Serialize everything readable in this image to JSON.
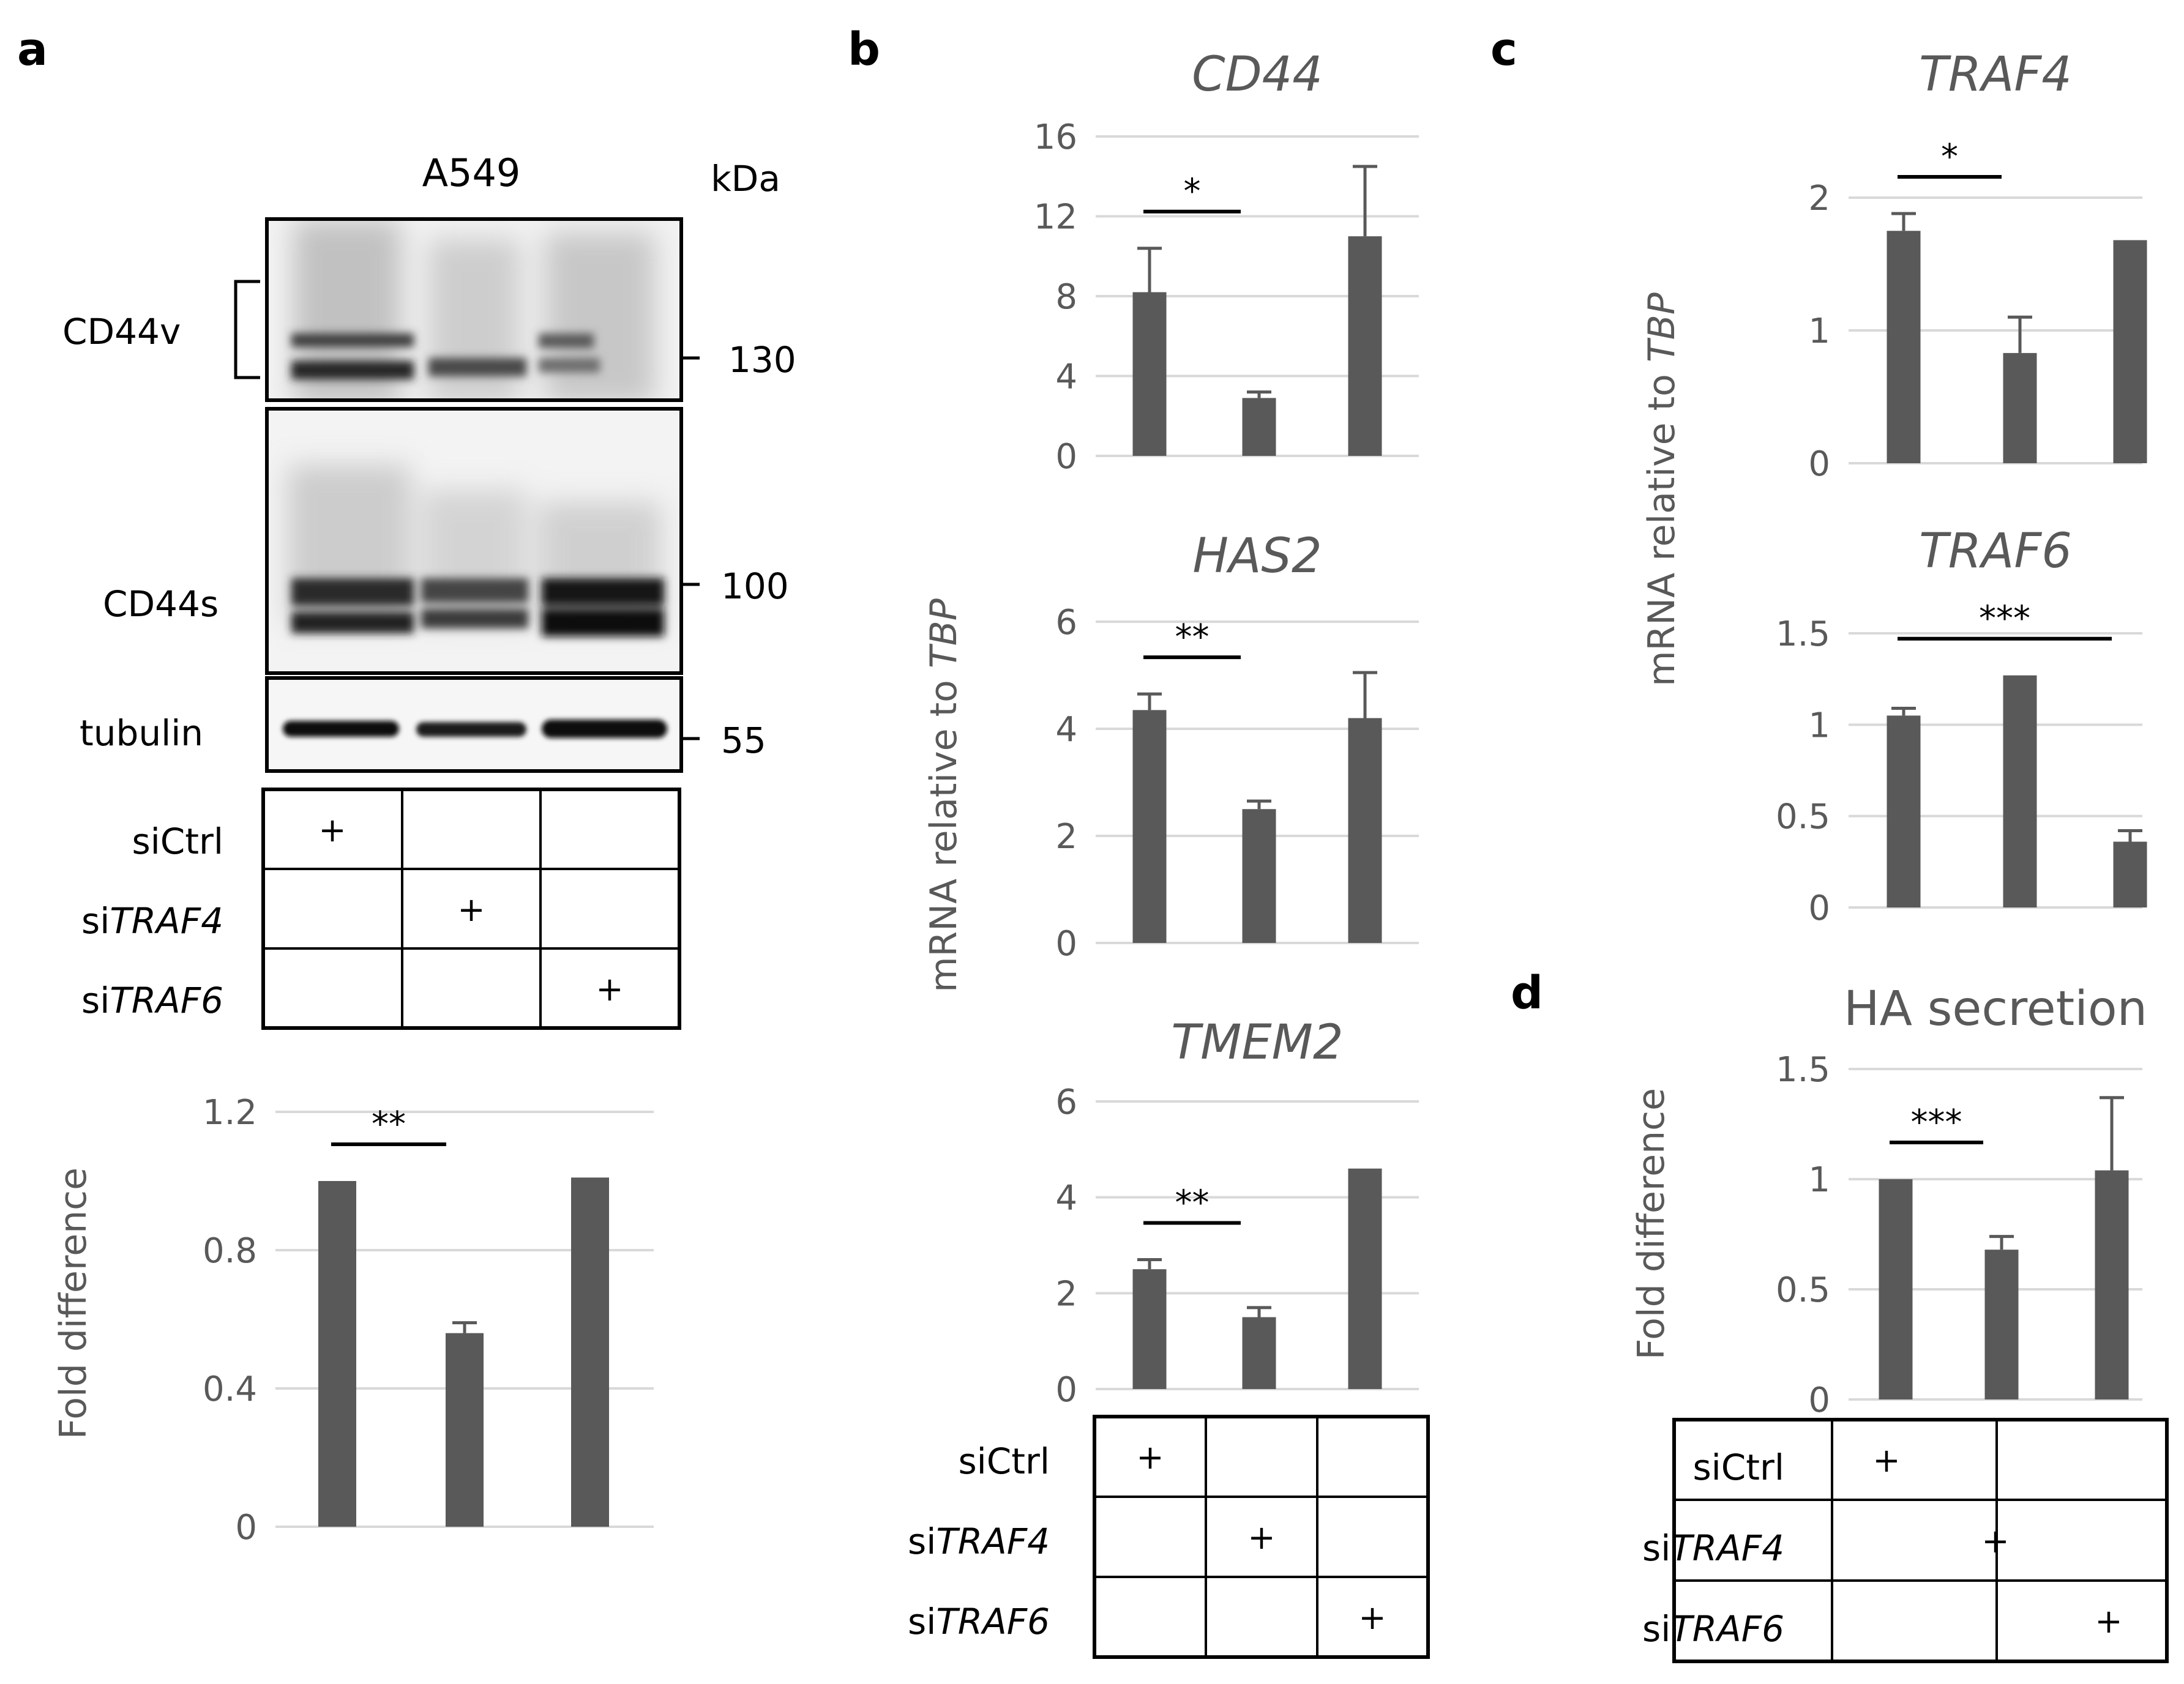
{
  "panel_labels": {
    "a": "a",
    "b": "b",
    "c": "c",
    "d": "d"
  },
  "blot": {
    "cell_line": "A549",
    "kda": "kDa",
    "bands": [
      "CD44v",
      "CD44s",
      "tubulin"
    ],
    "markers": [
      "130",
      "100",
      "55"
    ]
  },
  "conditions": {
    "ctrl": "siCtrl",
    "traf4_prefix": "si",
    "traf4_gene": "TRAF4",
    "traf6_prefix": "si",
    "traf6_gene": "TRAF6",
    "plus": "+"
  },
  "ylabels": {
    "fold": "Fold difference",
    "mrna_prefix": "mRNA relative to ",
    "mrna_gene": "TBP"
  },
  "colors": {
    "bar": "#595959",
    "grid": "#d9d9d9",
    "text": "#595959"
  },
  "chart_data": [
    {
      "id": "a_quant",
      "type": "bar",
      "title": "",
      "categories": [
        "siCtrl",
        "siTRAF4",
        "siTRAF6"
      ],
      "values": [
        1.0,
        0.56,
        1.01
      ],
      "errors": [
        0.0,
        0.03,
        0.0
      ],
      "ylabel": "Fold difference",
      "ylim": [
        0,
        1.2
      ],
      "yticks": [
        "0",
        "0.4",
        "0.8",
        "1.2"
      ],
      "significance": [
        {
          "from": 0,
          "to": 1,
          "label": "**"
        }
      ],
      "grid": true
    },
    {
      "id": "b_cd44",
      "type": "bar",
      "title": "CD44",
      "categories": [
        "siCtrl",
        "siTRAF4",
        "siTRAF6"
      ],
      "values": [
        8.2,
        2.9,
        11.0
      ],
      "errors": [
        2.2,
        0.3,
        3.5
      ],
      "ylim": [
        0,
        16
      ],
      "yticks": [
        "0",
        "4",
        "8",
        "12",
        "16"
      ],
      "significance": [
        {
          "from": 0,
          "to": 1,
          "label": "*"
        }
      ],
      "grid": true
    },
    {
      "id": "b_has2",
      "type": "bar",
      "title": "HAS2",
      "categories": [
        "siCtrl",
        "siTRAF4",
        "siTRAF6"
      ],
      "values": [
        4.35,
        2.5,
        4.2
      ],
      "errors": [
        0.3,
        0.15,
        0.85
      ],
      "ylim": [
        0,
        6
      ],
      "yticks": [
        "0",
        "2",
        "4",
        "6"
      ],
      "significance": [
        {
          "from": 0,
          "to": 1,
          "label": "**"
        }
      ],
      "grid": true
    },
    {
      "id": "b_tmem2",
      "type": "bar",
      "title": "TMEM2",
      "categories": [
        "siCtrl",
        "siTRAF4",
        "siTRAF6"
      ],
      "values": [
        2.5,
        1.5,
        4.6
      ],
      "errors": [
        0.2,
        0.2,
        0.0
      ],
      "ylim": [
        0,
        6
      ],
      "yticks": [
        "0",
        "2",
        "4",
        "6"
      ],
      "significance": [
        {
          "from": 0,
          "to": 1,
          "label": "**"
        }
      ],
      "grid": true
    },
    {
      "id": "c_traf4",
      "type": "bar",
      "title": "TRAF4",
      "categories": [
        "siCtrl",
        "siTRAF4",
        "siTRAF6"
      ],
      "values": [
        1.75,
        0.83,
        1.68
      ],
      "errors": [
        0.13,
        0.27,
        0.0
      ],
      "ylim": [
        0,
        2
      ],
      "yticks": [
        "0",
        "1",
        "2"
      ],
      "significance": [
        {
          "from": 0,
          "to": 1,
          "label": "*"
        }
      ],
      "grid": true
    },
    {
      "id": "c_traf6",
      "type": "bar",
      "title": "TRAF6",
      "categories": [
        "siCtrl",
        "siTRAF4",
        "siTRAF6"
      ],
      "values": [
        1.05,
        1.27,
        0.36
      ],
      "errors": [
        0.04,
        0.0,
        0.06
      ],
      "ylim": [
        0,
        1.5
      ],
      "yticks": [
        "0",
        "0.5",
        "1",
        "1.5"
      ],
      "significance": [
        {
          "from": 0,
          "to": 2,
          "label": "***"
        }
      ],
      "grid": true
    },
    {
      "id": "d_ha",
      "type": "bar",
      "title": "HA secretion",
      "categories": [
        "siCtrl",
        "siTRAF4",
        "siTRAF6"
      ],
      "values": [
        1.0,
        0.68,
        1.04
      ],
      "errors": [
        0.0,
        0.06,
        0.33
      ],
      "ylabel": "Fold difference",
      "ylim": [
        0,
        1.5
      ],
      "yticks": [
        "0",
        "0.5",
        "1",
        "1.5"
      ],
      "significance": [
        {
          "from": 0,
          "to": 1,
          "label": "***"
        }
      ],
      "grid": true
    }
  ]
}
